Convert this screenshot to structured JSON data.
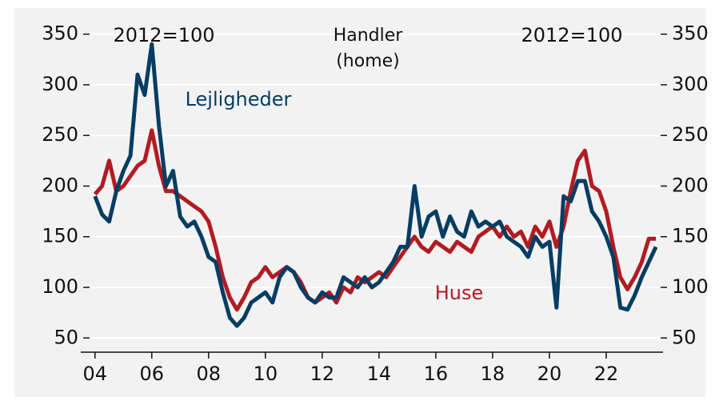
{
  "chart_data": {
    "type": "line",
    "title": "Handler",
    "subtitle": "(home)",
    "y_label": "2012=100",
    "y2_label": "2012=100",
    "x": [
      2004.0,
      2004.25,
      2004.5,
      2004.75,
      2005.0,
      2005.25,
      2005.5,
      2005.75,
      2006.0,
      2006.25,
      2006.5,
      2006.75,
      2007.0,
      2007.25,
      2007.5,
      2007.75,
      2008.0,
      2008.25,
      2008.5,
      2008.75,
      2009.0,
      2009.25,
      2009.5,
      2009.75,
      2010.0,
      2010.25,
      2010.5,
      2010.75,
      2011.0,
      2011.25,
      2011.5,
      2011.75,
      2012.0,
      2012.25,
      2012.5,
      2012.75,
      2013.0,
      2013.25,
      2013.5,
      2013.75,
      2014.0,
      2014.25,
      2014.5,
      2014.75,
      2015.0,
      2015.25,
      2015.5,
      2015.75,
      2016.0,
      2016.25,
      2016.5,
      2016.75,
      2017.0,
      2017.25,
      2017.5,
      2017.75,
      2018.0,
      2018.25,
      2018.5,
      2018.75,
      2019.0,
      2019.25,
      2019.5,
      2019.75,
      2020.0,
      2020.25,
      2020.5,
      2020.75,
      2021.0,
      2021.25,
      2021.5,
      2021.75,
      2022.0,
      2022.25,
      2022.5,
      2022.75,
      2023.0,
      2023.25,
      2023.5,
      2023.75
    ],
    "series": [
      {
        "name": "Lejligheder",
        "color": "#063d62",
        "values": [
          190,
          172,
          165,
          195,
          215,
          230,
          310,
          290,
          340,
          260,
          200,
          215,
          170,
          160,
          165,
          150,
          130,
          125,
          95,
          70,
          62,
          70,
          85,
          90,
          95,
          85,
          110,
          120,
          115,
          100,
          90,
          85,
          95,
          90,
          90,
          110,
          105,
          100,
          110,
          100,
          105,
          115,
          125,
          140,
          140,
          200,
          150,
          170,
          175,
          150,
          170,
          155,
          150,
          175,
          160,
          165,
          160,
          165,
          150,
          145,
          140,
          130,
          150,
          140,
          145,
          80,
          190,
          185,
          205,
          205,
          175,
          165,
          150,
          130,
          80,
          78,
          92,
          110,
          125,
          140
        ]
      },
      {
        "name": "Huse",
        "color": "#b01c22",
        "values": [
          192,
          200,
          225,
          195,
          200,
          210,
          220,
          225,
          255,
          220,
          195,
          195,
          190,
          185,
          180,
          175,
          165,
          140,
          110,
          90,
          78,
          90,
          105,
          110,
          120,
          110,
          115,
          120,
          115,
          105,
          90,
          85,
          90,
          95,
          85,
          100,
          95,
          110,
          105,
          110,
          115,
          110,
          120,
          130,
          140,
          150,
          140,
          135,
          145,
          140,
          135,
          145,
          140,
          135,
          150,
          155,
          160,
          150,
          160,
          150,
          155,
          140,
          160,
          150,
          165,
          140,
          160,
          195,
          225,
          235,
          200,
          195,
          175,
          140,
          110,
          98,
          110,
          125,
          148,
          148
        ]
      }
    ],
    "xlim": [
      2003.5,
      2024
    ],
    "xticks": [
      {
        "value": 2004,
        "label": "04"
      },
      {
        "value": 2006,
        "label": "06"
      },
      {
        "value": 2008,
        "label": "08"
      },
      {
        "value": 2010,
        "label": "10"
      },
      {
        "value": 2012,
        "label": "12"
      },
      {
        "value": 2014,
        "label": "14"
      },
      {
        "value": 2016,
        "label": "16"
      },
      {
        "value": 2018,
        "label": "18"
      },
      {
        "value": 2020,
        "label": "20"
      },
      {
        "value": 2022,
        "label": "22"
      }
    ],
    "ylim": [
      36,
      360
    ],
    "yticks": [
      50,
      100,
      150,
      200,
      250,
      300,
      350
    ],
    "y2lim": [
      36,
      360
    ],
    "y2ticks": [
      50,
      100,
      150,
      200,
      250,
      300,
      350
    ],
    "grid": true
  }
}
